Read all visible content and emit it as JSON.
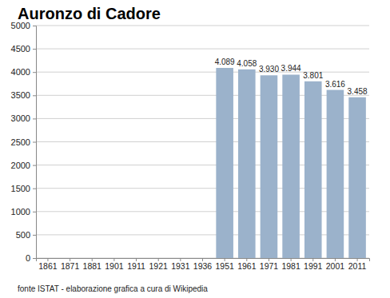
{
  "chart_data": {
    "type": "bar",
    "title": "Auronzo di Cadore",
    "categories": [
      "1861",
      "1871",
      "1881",
      "1901",
      "1911",
      "1921",
      "1931",
      "1936",
      "1951",
      "1961",
      "1971",
      "1981",
      "1991",
      "2001",
      "2011"
    ],
    "values": [
      null,
      null,
      null,
      null,
      null,
      null,
      null,
      null,
      4089,
      4058,
      3930,
      3944,
      3801,
      3616,
      3458
    ],
    "value_labels": [
      null,
      null,
      null,
      null,
      null,
      null,
      null,
      null,
      "4.089",
      "4.058",
      "3.930",
      "3.944",
      "3.801",
      "3.616",
      "3.458"
    ],
    "data_labels": true,
    "color": "#9bb2cb",
    "ylim": [
      0,
      5000
    ],
    "yticks": [
      0,
      500,
      1000,
      1500,
      2000,
      2500,
      3000,
      3500,
      4000,
      4500,
      5000
    ],
    "grid": true,
    "annotations": [
      "fonte ISTAT - elaborazione grafica a cura di Wikipedia"
    ]
  }
}
